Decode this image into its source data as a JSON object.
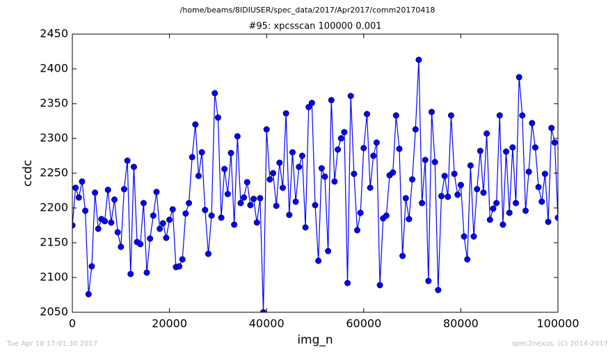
{
  "chart_data": {
    "type": "line",
    "suptitle": "/home/beams/8IDIUSER/spec_data/2017/Apr2017/comm20170418",
    "title": "#95: xpcsscan 100000 0.001",
    "xlabel": "img_n",
    "ylabel": "ccdc",
    "footer_left": "Tue Apr 18 17:01:30 2017",
    "footer_right": "spec2nexus, (C) 2014-2017",
    "color": "#0000ff",
    "marker": "circle",
    "xlim": [
      0,
      100000
    ],
    "xticks": [
      0,
      20000,
      40000,
      60000,
      80000,
      100000
    ],
    "ylim": [
      2050,
      2450
    ],
    "yticks": [
      2050,
      2100,
      2150,
      2200,
      2250,
      2300,
      2350,
      2400,
      2450
    ],
    "x": [
      0,
      667,
      1333,
      2000,
      2667,
      3333,
      4000,
      4667,
      5333,
      6000,
      6667,
      7333,
      8000,
      8667,
      9333,
      10000,
      10667,
      11333,
      12000,
      12667,
      13333,
      14000,
      14667,
      15333,
      16000,
      16667,
      17333,
      18000,
      18667,
      19333,
      20000,
      20667,
      21333,
      22000,
      22667,
      23333,
      24000,
      24667,
      25333,
      26000,
      26667,
      27333,
      28000,
      28667,
      29333,
      30000,
      30667,
      31333,
      32000,
      32667,
      33333,
      34000,
      34667,
      35333,
      36000,
      36667,
      37333,
      38000,
      38667,
      39333,
      40000,
      40667,
      41333,
      42000,
      42667,
      43333,
      44000,
      44667,
      45333,
      46000,
      46667,
      47333,
      48000,
      48667,
      49333,
      50000,
      50667,
      51333,
      52000,
      52667,
      53333,
      54000,
      54667,
      55333,
      56000,
      56667,
      57333,
      58000,
      58667,
      59333,
      60000,
      60667,
      61333,
      62000,
      62667,
      63333,
      64000,
      64667,
      65333,
      66000,
      66667,
      67333,
      68000,
      68667,
      69333,
      70000,
      70667,
      71333,
      72000,
      72667,
      73333,
      74000,
      74667,
      75333,
      76000,
      76667,
      77333,
      78000,
      78667,
      79333,
      80000,
      80667,
      81333,
      82000,
      82667,
      83333,
      84000,
      84667,
      85333,
      86000,
      86667,
      87333,
      88000,
      88667,
      89333,
      90000,
      90667,
      91333,
      92000,
      92667,
      93333,
      94000,
      94667,
      95333,
      96000,
      96667,
      97333,
      98000,
      98667,
      99333,
      100000
    ],
    "values": [
      2175,
      2229,
      2215,
      2238,
      2196,
      2076,
      2116,
      2222,
      2170,
      2184,
      2181,
      2226,
      2179,
      2212,
      2165,
      2144,
      2227,
      2268,
      2105,
      2259,
      2151,
      2148,
      2207,
      2107,
      2156,
      2189,
      2223,
      2170,
      2178,
      2157,
      2183,
      2198,
      2115,
      2116,
      2126,
      2192,
      2207,
      2273,
      2320,
      2246,
      2280,
      2197,
      2134,
      2189,
      2365,
      2330,
      2186,
      2256,
      2220,
      2279,
      2176,
      2303,
      2207,
      2215,
      2237,
      2204,
      2213,
      2179,
      2214,
      2050,
      2313,
      2241,
      2250,
      2203,
      2265,
      2229,
      2336,
      2190,
      2280,
      2209,
      2259,
      2275,
      2172,
      2345,
      2351,
      2204,
      2124,
      2257,
      2245,
      2138,
      2355,
      2238,
      2284,
      2300,
      2309,
      2092,
      2361,
      2249,
      2168,
      2193,
      2286,
      2335,
      2229,
      2275,
      2294,
      2089,
      2185,
      2189,
      2247,
      2251,
      2333,
      2285,
      2131,
      2214,
      2184,
      2241,
      2313,
      2413,
      2207,
      2269,
      2095,
      2338,
      2266,
      2082,
      2217,
      2246,
      2216,
      2333,
      2249,
      2219,
      2233,
      2159,
      2126,
      2261,
      2159,
      2227,
      2282,
      2222,
      2307,
      2183,
      2199,
      2207,
      2333,
      2176,
      2281,
      2193,
      2287,
      2207,
      2388,
      2333,
      2196,
      2252,
      2322,
      2287,
      2230,
      2209,
      2249,
      2180,
      2315,
      2294,
      2186
    ]
  }
}
